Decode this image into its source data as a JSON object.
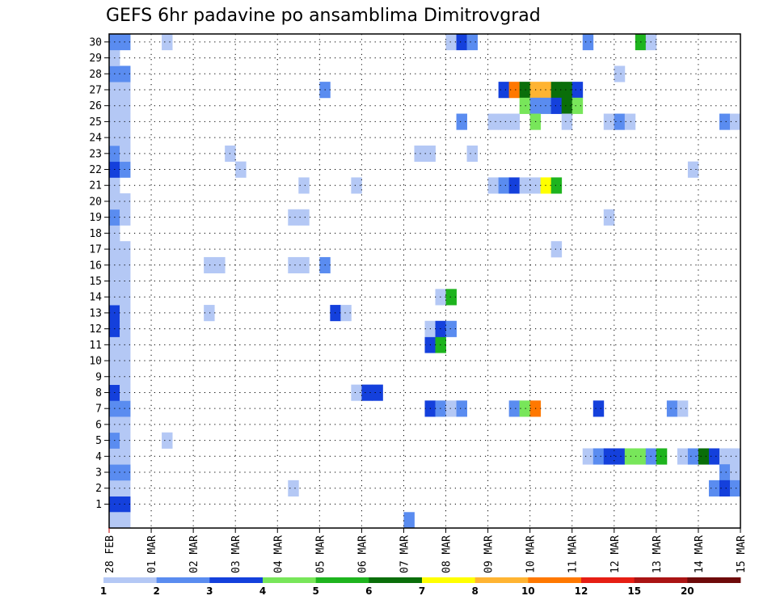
{
  "chart_data": {
    "type": "heatmap",
    "title": "GEFS 6hr padavine po ansamblima Dimitrovgrad",
    "x_ticks": [
      "28 FEB",
      "01 MAR",
      "02 MAR",
      "03 MAR",
      "04 MAR",
      "05 MAR",
      "06 MAR",
      "07 MAR",
      "08 MAR",
      "09 MAR",
      "10 MAR",
      "11 MAR",
      "12 MAR",
      "13 MAR",
      "14 MAR",
      "15 MAR"
    ],
    "y_ticks": [
      1,
      2,
      3,
      4,
      5,
      6,
      7,
      8,
      9,
      10,
      11,
      12,
      13,
      14,
      15,
      16,
      17,
      18,
      19,
      20,
      21,
      22,
      23,
      24,
      25,
      26,
      27,
      28,
      29,
      30
    ],
    "x_range": [
      0,
      60
    ],
    "y_range": [
      0,
      30
    ],
    "grid": true,
    "colorbar": {
      "labels": [
        "1",
        "2",
        "3",
        "4",
        "5",
        "6",
        "7",
        "8",
        "10",
        "12",
        "15",
        "20"
      ],
      "colors": [
        "#b4c8f5",
        "#5a8cf0",
        "#1440dc",
        "#78e65a",
        "#1eb41e",
        "#0a6e0a",
        "#ffff00",
        "#ffb432",
        "#ff7800",
        "#e61e14",
        "#aa1414",
        "#6e0a0a"
      ]
    },
    "cells": [
      {
        "t": 0,
        "m": 1,
        "v": 3
      },
      {
        "t": 1,
        "m": 1,
        "v": 3
      },
      {
        "t": 0,
        "m": 2,
        "v": 1
      },
      {
        "t": 1,
        "m": 2,
        "v": 1
      },
      {
        "t": 0,
        "m": 3,
        "v": 2
      },
      {
        "t": 1,
        "m": 3,
        "v": 2
      },
      {
        "t": 0,
        "m": 4,
        "v": 1
      },
      {
        "t": 1,
        "m": 4,
        "v": 1
      },
      {
        "t": 0,
        "m": 5,
        "v": 2
      },
      {
        "t": 1,
        "m": 5,
        "v": 1
      },
      {
        "t": 0,
        "m": 6,
        "v": 1
      },
      {
        "t": 1,
        "m": 6,
        "v": 1
      },
      {
        "t": 0,
        "m": 7,
        "v": 2
      },
      {
        "t": 1,
        "m": 7,
        "v": 2
      },
      {
        "t": 0,
        "m": 8,
        "v": 3
      },
      {
        "t": 1,
        "m": 8,
        "v": 1
      },
      {
        "t": 0,
        "m": 9,
        "v": 1
      },
      {
        "t": 1,
        "m": 9,
        "v": 1
      },
      {
        "t": 0,
        "m": 10,
        "v": 1
      },
      {
        "t": 1,
        "m": 10,
        "v": 1
      },
      {
        "t": 0,
        "m": 11,
        "v": 1
      },
      {
        "t": 1,
        "m": 11,
        "v": 1
      },
      {
        "t": 0,
        "m": 12,
        "v": 3
      },
      {
        "t": 1,
        "m": 12,
        "v": 1
      },
      {
        "t": 0,
        "m": 13,
        "v": 3
      },
      {
        "t": 1,
        "m": 13,
        "v": 1
      },
      {
        "t": 0,
        "m": 14,
        "v": 1
      },
      {
        "t": 1,
        "m": 14,
        "v": 1
      },
      {
        "t": 0,
        "m": 15,
        "v": 1
      },
      {
        "t": 1,
        "m": 15,
        "v": 1
      },
      {
        "t": 0,
        "m": 16,
        "v": 1
      },
      {
        "t": 1,
        "m": 16,
        "v": 1
      },
      {
        "t": 0,
        "m": 17,
        "v": 1
      },
      {
        "t": 1,
        "m": 17,
        "v": 1
      },
      {
        "t": 0,
        "m": 18,
        "v": 1
      },
      {
        "t": 0,
        "m": 19,
        "v": 2
      },
      {
        "t": 1,
        "m": 19,
        "v": 1
      },
      {
        "t": 0,
        "m": 20,
        "v": 1
      },
      {
        "t": 1,
        "m": 20,
        "v": 1
      },
      {
        "t": 0,
        "m": 21,
        "v": 1
      },
      {
        "t": 0,
        "m": 22,
        "v": 3
      },
      {
        "t": 1,
        "m": 22,
        "v": 2
      },
      {
        "t": 0,
        "m": 23,
        "v": 2
      },
      {
        "t": 1,
        "m": 23,
        "v": 1
      },
      {
        "t": 0,
        "m": 24,
        "v": 1
      },
      {
        "t": 1,
        "m": 24,
        "v": 1
      },
      {
        "t": 0,
        "m": 25,
        "v": 1
      },
      {
        "t": 1,
        "m": 25,
        "v": 1
      },
      {
        "t": 0,
        "m": 26,
        "v": 1
      },
      {
        "t": 1,
        "m": 26,
        "v": 1
      },
      {
        "t": 0,
        "m": 27,
        "v": 1
      },
      {
        "t": 1,
        "m": 27,
        "v": 1
      },
      {
        "t": 0,
        "m": 28,
        "v": 2
      },
      {
        "t": 1,
        "m": 28,
        "v": 2
      },
      {
        "t": 0,
        "m": 29,
        "v": 1
      },
      {
        "t": 0,
        "m": 30,
        "v": 2
      },
      {
        "t": 1,
        "m": 30,
        "v": 2
      },
      {
        "t": 0,
        "m": 0,
        "v": 1
      },
      {
        "t": 1,
        "m": 0,
        "v": 1
      },
      {
        "t": 5,
        "m": 30,
        "v": 1
      },
      {
        "t": 5,
        "m": 5,
        "v": 1
      },
      {
        "t": 11,
        "m": 23,
        "v": 1
      },
      {
        "t": 12,
        "m": 22,
        "v": 1
      },
      {
        "t": 9,
        "m": 16,
        "v": 1
      },
      {
        "t": 10,
        "m": 16,
        "v": 1
      },
      {
        "t": 9,
        "m": 13,
        "v": 1
      },
      {
        "t": 17,
        "m": 2,
        "v": 1
      },
      {
        "t": 17,
        "m": 16,
        "v": 1
      },
      {
        "t": 18,
        "m": 16,
        "v": 1
      },
      {
        "t": 17,
        "m": 19,
        "v": 1
      },
      {
        "t": 18,
        "m": 19,
        "v": 1
      },
      {
        "t": 18,
        "m": 21,
        "v": 1
      },
      {
        "t": 20,
        "m": 27,
        "v": 2
      },
      {
        "t": 20,
        "m": 16,
        "v": 2
      },
      {
        "t": 21,
        "m": 13,
        "v": 3
      },
      {
        "t": 22,
        "m": 13,
        "v": 1
      },
      {
        "t": 23,
        "m": 21,
        "v": 1
      },
      {
        "t": 23,
        "m": 8,
        "v": 1
      },
      {
        "t": 24,
        "m": 8,
        "v": 3
      },
      {
        "t": 25,
        "m": 8,
        "v": 3
      },
      {
        "t": 28,
        "m": 0,
        "v": 2
      },
      {
        "t": 29,
        "m": 23,
        "v": 1
      },
      {
        "t": 30,
        "m": 23,
        "v": 1
      },
      {
        "t": 30,
        "m": 7,
        "v": 3
      },
      {
        "t": 31,
        "m": 7,
        "v": 2
      },
      {
        "t": 32,
        "m": 7,
        "v": 1
      },
      {
        "t": 30,
        "m": 11,
        "v": 3
      },
      {
        "t": 31,
        "m": 11,
        "v": 5
      },
      {
        "t": 30,
        "m": 12,
        "v": 1
      },
      {
        "t": 31,
        "m": 12,
        "v": 3
      },
      {
        "t": 32,
        "m": 12,
        "v": 2
      },
      {
        "t": 31,
        "m": 14,
        "v": 1
      },
      {
        "t": 32,
        "m": 14,
        "v": 5
      },
      {
        "t": 33,
        "m": 7,
        "v": 2
      },
      {
        "t": 32,
        "m": 30,
        "v": 1
      },
      {
        "t": 33,
        "m": 30,
        "v": 3
      },
      {
        "t": 34,
        "m": 30,
        "v": 2
      },
      {
        "t": 33,
        "m": 25,
        "v": 2
      },
      {
        "t": 34,
        "m": 23,
        "v": 1
      },
      {
        "t": 36,
        "m": 25,
        "v": 1
      },
      {
        "t": 37,
        "m": 25,
        "v": 1
      },
      {
        "t": 38,
        "m": 25,
        "v": 1
      },
      {
        "t": 36,
        "m": 21,
        "v": 1
      },
      {
        "t": 37,
        "m": 21,
        "v": 2
      },
      {
        "t": 38,
        "m": 21,
        "v": 3
      },
      {
        "t": 39,
        "m": 21,
        "v": 1
      },
      {
        "t": 40,
        "m": 21,
        "v": 1
      },
      {
        "t": 41,
        "m": 21,
        "v": 7
      },
      {
        "t": 42,
        "m": 21,
        "v": 5
      },
      {
        "t": 37,
        "m": 27,
        "v": 3
      },
      {
        "t": 38,
        "m": 27,
        "v": 10
      },
      {
        "t": 39,
        "m": 27,
        "v": 6
      },
      {
        "t": 40,
        "m": 27,
        "v": 8
      },
      {
        "t": 41,
        "m": 27,
        "v": 8
      },
      {
        "t": 42,
        "m": 27,
        "v": 6
      },
      {
        "t": 43,
        "m": 27,
        "v": 6
      },
      {
        "t": 44,
        "m": 27,
        "v": 3
      },
      {
        "t": 39,
        "m": 26,
        "v": 4
      },
      {
        "t": 40,
        "m": 26,
        "v": 2
      },
      {
        "t": 41,
        "m": 26,
        "v": 2
      },
      {
        "t": 42,
        "m": 26,
        "v": 3
      },
      {
        "t": 43,
        "m": 26,
        "v": 6
      },
      {
        "t": 44,
        "m": 26,
        "v": 4
      },
      {
        "t": 40,
        "m": 25,
        "v": 4
      },
      {
        "t": 43,
        "m": 25,
        "v": 1
      },
      {
        "t": 38,
        "m": 7,
        "v": 2
      },
      {
        "t": 39,
        "m": 7,
        "v": 4
      },
      {
        "t": 40,
        "m": 7,
        "v": 10
      },
      {
        "t": 42,
        "m": 17,
        "v": 1
      },
      {
        "t": 45,
        "m": 30,
        "v": 2
      },
      {
        "t": 46,
        "m": 7,
        "v": 3
      },
      {
        "t": 45,
        "m": 4,
        "v": 1
      },
      {
        "t": 46,
        "m": 4,
        "v": 2
      },
      {
        "t": 47,
        "m": 4,
        "v": 3
      },
      {
        "t": 48,
        "m": 4,
        "v": 3
      },
      {
        "t": 49,
        "m": 4,
        "v": 4
      },
      {
        "t": 50,
        "m": 4,
        "v": 4
      },
      {
        "t": 51,
        "m": 4,
        "v": 2
      },
      {
        "t": 52,
        "m": 4,
        "v": 5
      },
      {
        "t": 47,
        "m": 25,
        "v": 1
      },
      {
        "t": 48,
        "m": 25,
        "v": 2
      },
      {
        "t": 49,
        "m": 25,
        "v": 1
      },
      {
        "t": 48,
        "m": 28,
        "v": 1
      },
      {
        "t": 47,
        "m": 19,
        "v": 1
      },
      {
        "t": 50,
        "m": 30,
        "v": 5
      },
      {
        "t": 51,
        "m": 30,
        "v": 1
      },
      {
        "t": 53,
        "m": 7,
        "v": 2
      },
      {
        "t": 54,
        "m": 7,
        "v": 1
      },
      {
        "t": 54,
        "m": 4,
        "v": 1
      },
      {
        "t": 55,
        "m": 4,
        "v": 2
      },
      {
        "t": 56,
        "m": 4,
        "v": 6
      },
      {
        "t": 57,
        "m": 4,
        "v": 3
      },
      {
        "t": 58,
        "m": 4,
        "v": 1
      },
      {
        "t": 59,
        "m": 4,
        "v": 1
      },
      {
        "t": 55,
        "m": 22,
        "v": 1
      },
      {
        "t": 58,
        "m": 25,
        "v": 2
      },
      {
        "t": 59,
        "m": 25,
        "v": 1
      },
      {
        "t": 58,
        "m": 3,
        "v": 2
      },
      {
        "t": 59,
        "m": 3,
        "v": 1
      },
      {
        "t": 57,
        "m": 2,
        "v": 2
      },
      {
        "t": 58,
        "m": 2,
        "v": 3
      },
      {
        "t": 59,
        "m": 2,
        "v": 2
      }
    ]
  }
}
